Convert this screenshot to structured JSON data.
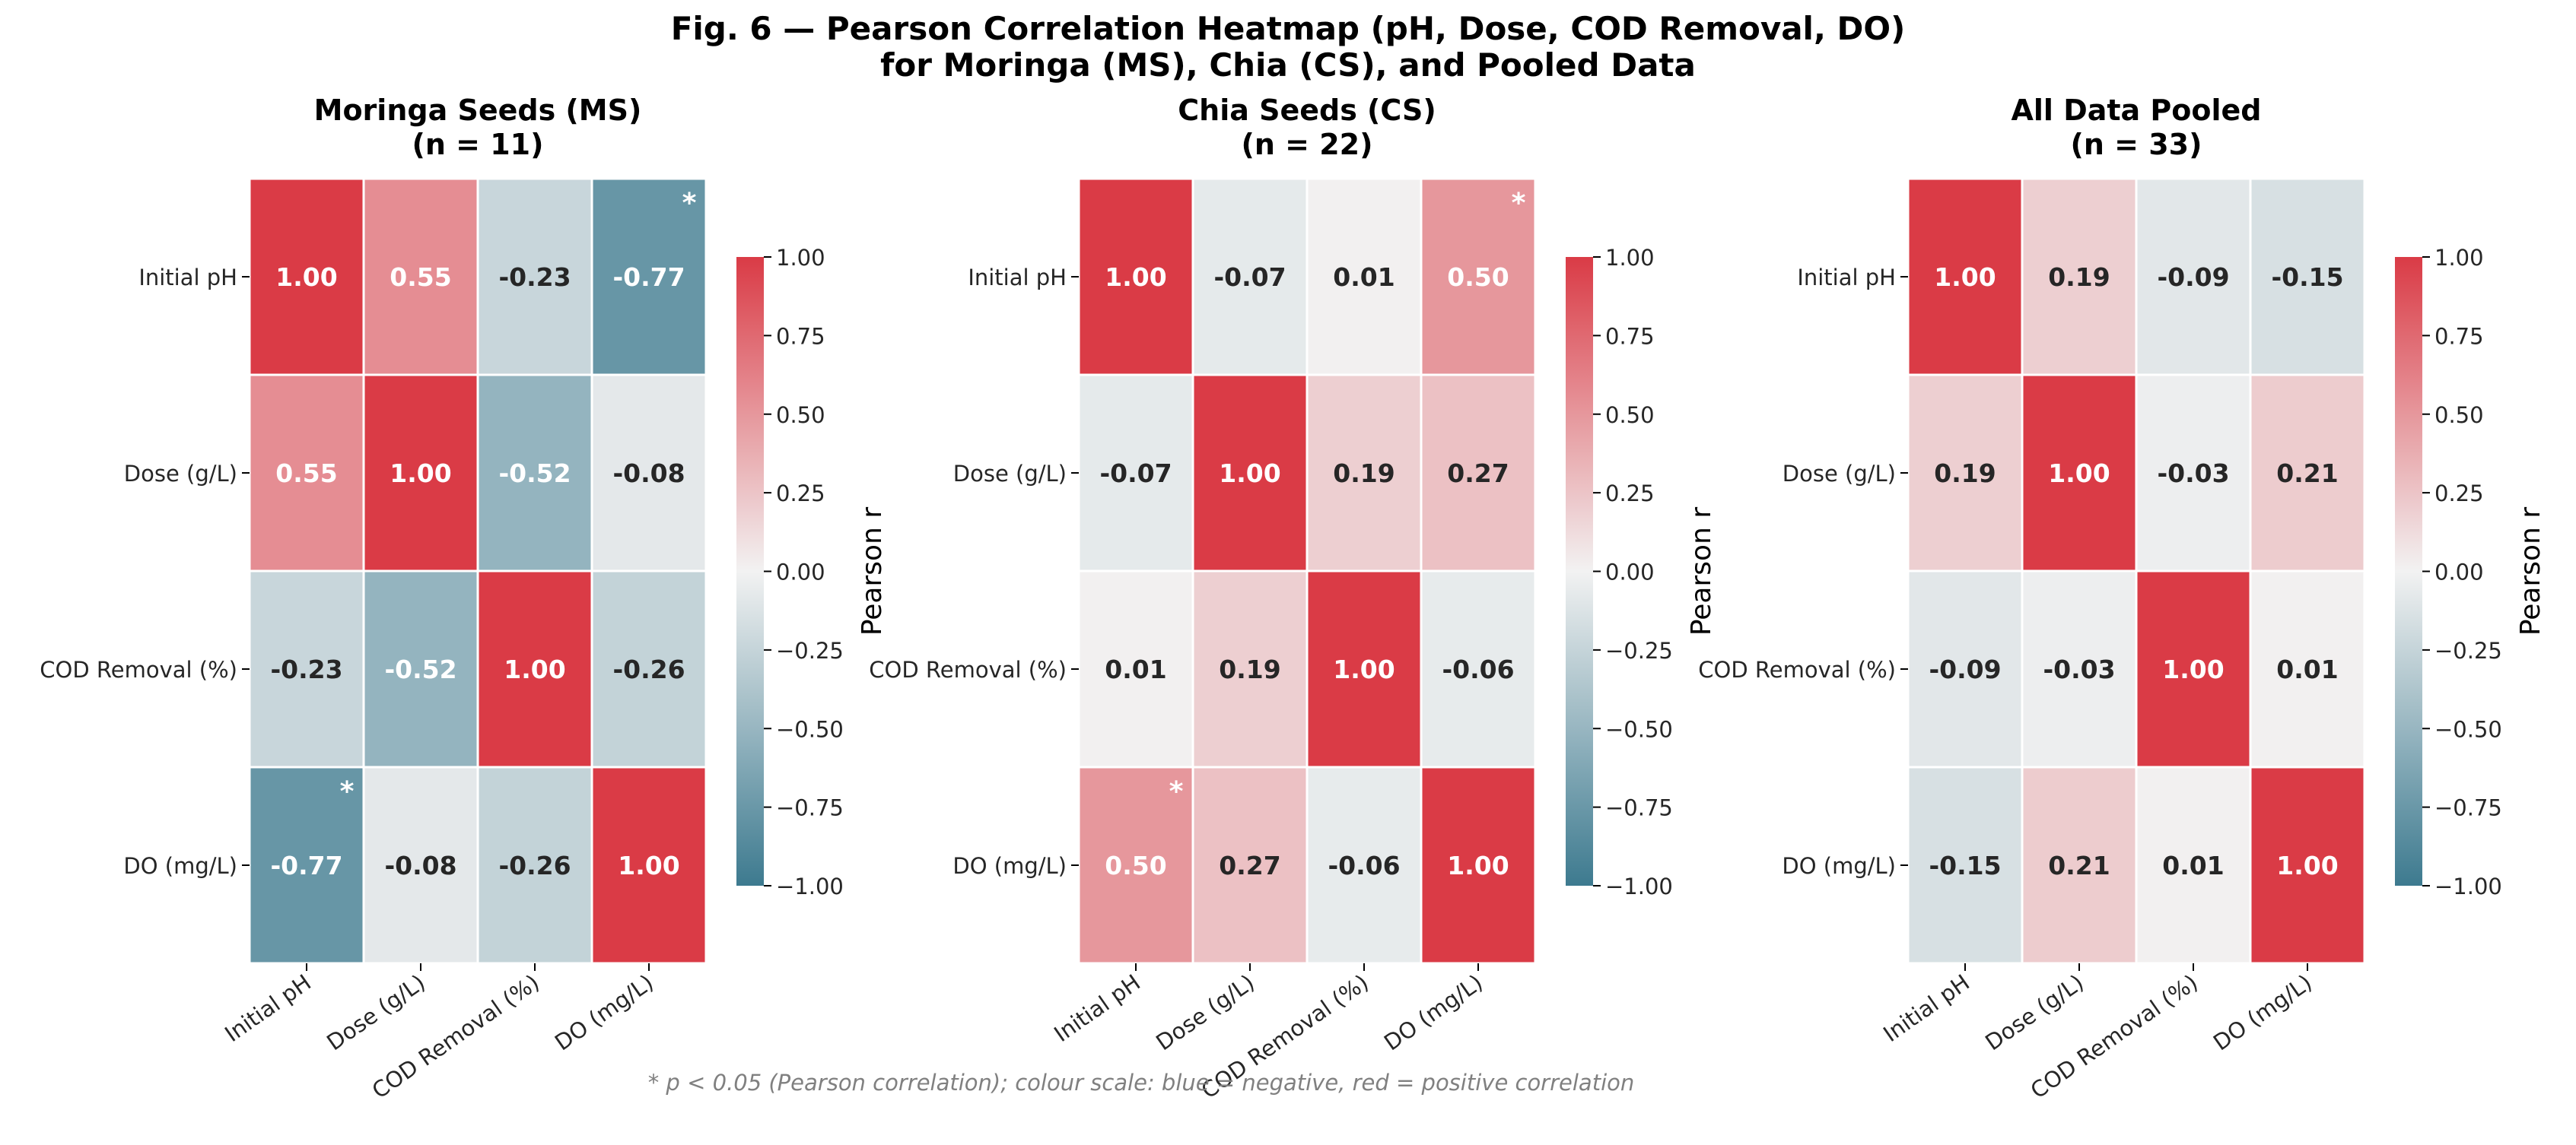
{
  "figure": {
    "title_line1": "Fig. 6 — Pearson Correlation Heatmap (pH, Dose, COD Removal, DO)",
    "title_line2": "for Moringa (MS), Chia (CS), and Pooled Data",
    "footnote": "* p < 0.05 (Pearson correlation); colour scale: blue = negative, red = positive correlation"
  },
  "chart_data": [
    {
      "type": "heatmap",
      "title": "Moringa Seeds (MS)",
      "subtitle": "(n = 11)",
      "variables": [
        "Initial pH",
        "Dose (g/L)",
        "COD Removal (%)",
        "DO (mg/L)"
      ],
      "matrix": [
        [
          1.0,
          0.55,
          -0.23,
          -0.77
        ],
        [
          0.55,
          1.0,
          -0.52,
          -0.08
        ],
        [
          -0.23,
          -0.52,
          1.0,
          -0.26
        ],
        [
          -0.77,
          -0.08,
          -0.26,
          1.0
        ]
      ],
      "significant": [
        [
          0,
          3
        ],
        [
          3,
          0
        ]
      ],
      "significance_marker": "*",
      "colorbar": {
        "label": "Pearson r",
        "range": [
          -1,
          1
        ],
        "ticks": [
          "1.00",
          "0.75",
          "0.50",
          "0.25",
          "0.00",
          "−0.25",
          "−0.50",
          "−0.75",
          "−1.00"
        ]
      }
    },
    {
      "type": "heatmap",
      "title": "Chia Seeds (CS)",
      "subtitle": "(n = 22)",
      "variables": [
        "Initial pH",
        "Dose (g/L)",
        "COD Removal (%)",
        "DO (mg/L)"
      ],
      "matrix": [
        [
          1.0,
          -0.07,
          0.01,
          0.5
        ],
        [
          -0.07,
          1.0,
          0.19,
          0.27
        ],
        [
          0.01,
          0.19,
          1.0,
          -0.06
        ],
        [
          0.5,
          0.27,
          -0.06,
          1.0
        ]
      ],
      "significant": [
        [
          0,
          3
        ],
        [
          3,
          0
        ]
      ],
      "significance_marker": "*",
      "colorbar": {
        "label": "Pearson r",
        "range": [
          -1,
          1
        ],
        "ticks": [
          "1.00",
          "0.75",
          "0.50",
          "0.25",
          "0.00",
          "−0.25",
          "−0.50",
          "−0.75",
          "−1.00"
        ]
      }
    },
    {
      "type": "heatmap",
      "title": "All Data Pooled",
      "subtitle": "(n = 33)",
      "variables": [
        "Initial pH",
        "Dose (g/L)",
        "COD Removal (%)",
        "DO (mg/L)"
      ],
      "matrix": [
        [
          1.0,
          0.19,
          -0.09,
          -0.15
        ],
        [
          0.19,
          1.0,
          -0.03,
          0.21
        ],
        [
          -0.09,
          -0.03,
          1.0,
          0.01
        ],
        [
          -0.15,
          0.21,
          0.01,
          1.0
        ]
      ],
      "significant": [],
      "significance_marker": "*",
      "colorbar": {
        "label": "Pearson r",
        "range": [
          -1,
          1
        ],
        "ticks": [
          "1.00",
          "0.75",
          "0.50",
          "0.25",
          "0.00",
          "−0.25",
          "−0.50",
          "−0.75",
          "−1.00"
        ]
      }
    }
  ],
  "colors": {
    "negative_end": "#3d7a8f",
    "neutral": "#f2f2f2",
    "positive_end": "#da3b46",
    "text_dark": "#262626",
    "text_light": "#ffffff",
    "footnote": "#808080"
  }
}
